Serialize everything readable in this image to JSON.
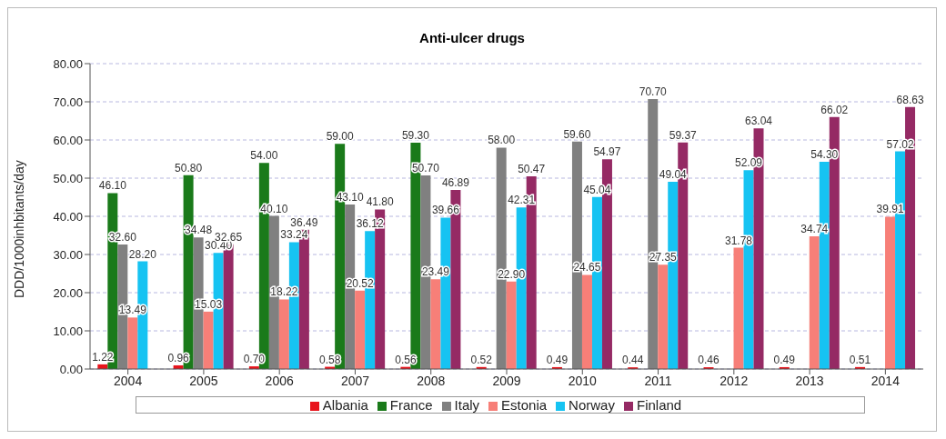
{
  "chart_data": {
    "type": "bar",
    "title": "Anti-ulcer drugs",
    "ylabel": "DDD/1000inhbitants/day",
    "categories": [
      "2004",
      "2005",
      "2006",
      "2007",
      "2008",
      "2009",
      "2010",
      "2011",
      "2012",
      "2013",
      "2014"
    ],
    "series": [
      {
        "name": "Albania",
        "color": "#e8141c",
        "values": [
          1.22,
          0.96,
          0.7,
          0.58,
          0.56,
          0.52,
          0.49,
          0.44,
          0.46,
          0.49,
          0.51
        ],
        "value_labels": [
          "1.22",
          "0.96",
          "0.70",
          "0.58",
          "0.56",
          "0.52",
          "0.49",
          "0.44",
          "0.46",
          "0.49",
          "0.51"
        ]
      },
      {
        "name": "France",
        "color": "#1a7a1a",
        "values": [
          46.1,
          50.8,
          54.0,
          59.0,
          59.3,
          null,
          null,
          null,
          null,
          null,
          null
        ],
        "value_labels": [
          "46.10",
          "50.80",
          "54.00",
          "59.00",
          "59.30",
          null,
          null,
          null,
          null,
          null,
          null
        ]
      },
      {
        "name": "Italy",
        "color": "#808080",
        "values": [
          32.6,
          34.48,
          40.1,
          43.1,
          50.7,
          58.0,
          59.6,
          70.7,
          null,
          null,
          null
        ],
        "value_labels": [
          "32.60",
          "34.48",
          "40.10",
          "43.10",
          "50.70",
          "58.00",
          "59.60",
          "70.70",
          null,
          null,
          null
        ]
      },
      {
        "name": "Estonia",
        "color": "#f77f78",
        "values": [
          13.49,
          15.03,
          18.22,
          20.52,
          23.49,
          22.9,
          24.65,
          27.35,
          31.78,
          34.74,
          39.91
        ],
        "value_labels": [
          "13.49",
          "15.03",
          "18.22",
          "20.52",
          "23.49",
          "22.90",
          "24.65",
          "27.35",
          "31.78",
          "34.74",
          "39.91"
        ]
      },
      {
        "name": "Norway",
        "color": "#16c3f2",
        "values": [
          28.2,
          30.4,
          33.24,
          36.12,
          39.66,
          42.31,
          45.04,
          49.04,
          52.09,
          54.3,
          57.02
        ],
        "value_labels": [
          "28.20",
          "30.40",
          "33.24",
          "36.12",
          "39.66",
          "42.31",
          "45.04",
          "49.04",
          "52.09",
          "54.30",
          "57.02"
        ]
      },
      {
        "name": "Finland",
        "color": "#952a64",
        "values": [
          null,
          32.65,
          36.49,
          41.8,
          46.89,
          50.47,
          54.97,
          59.37,
          63.04,
          66.02,
          68.63
        ],
        "value_labels": [
          null,
          "32.65",
          "36.49",
          "41.80",
          "46.89",
          "50.47",
          "54.97",
          "59.37",
          "63.04",
          "66.02",
          "68.63"
        ]
      }
    ],
    "ylim": [
      0,
      80
    ],
    "yticks": [
      {
        "value": 0,
        "label": "0.00"
      },
      {
        "value": 10,
        "label": "10.00"
      },
      {
        "value": 20,
        "label": "20.00"
      },
      {
        "value": 30,
        "label": "30.00"
      },
      {
        "value": 40,
        "label": "40.00"
      },
      {
        "value": 50,
        "label": "50.00"
      },
      {
        "value": 60,
        "label": "60.00"
      },
      {
        "value": 70,
        "label": "70.00"
      },
      {
        "value": 80,
        "label": "80.00"
      }
    ],
    "grid": "y",
    "legend": "bottom"
  }
}
